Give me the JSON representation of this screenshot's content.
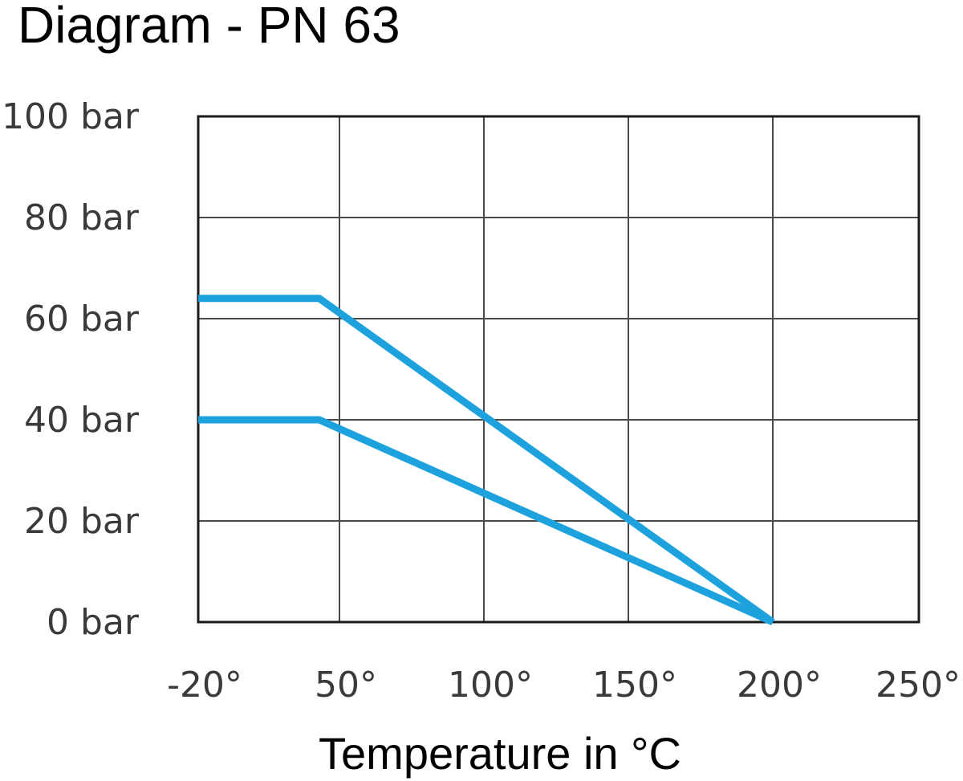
{
  "chart_data": {
    "type": "line",
    "title": "Diagram - PN 63",
    "xlabel": "Temperature in °C",
    "ylabel": "",
    "x_tick_labels": [
      "-20°",
      "50°",
      "100°",
      "150°",
      "200°",
      "250°"
    ],
    "x_tick_values": [
      -20,
      50,
      100,
      150,
      200,
      250
    ],
    "y_tick_labels": [
      "0 bar",
      "20 bar",
      "40 bar",
      "60 bar",
      "80 bar",
      "100 bar"
    ],
    "y_tick_values": [
      0,
      20,
      40,
      60,
      80,
      100
    ],
    "xlim": [
      -20,
      250
    ],
    "ylim": [
      0,
      100
    ],
    "grid": true,
    "series": [
      {
        "color": "#1ea2dd",
        "points": [
          [
            -20,
            64
          ],
          [
            40,
            64
          ],
          [
            200,
            0
          ]
        ]
      },
      {
        "color": "#1ea2dd",
        "points": [
          [
            -20,
            40
          ],
          [
            40,
            40
          ],
          [
            200,
            0
          ]
        ]
      }
    ]
  }
}
